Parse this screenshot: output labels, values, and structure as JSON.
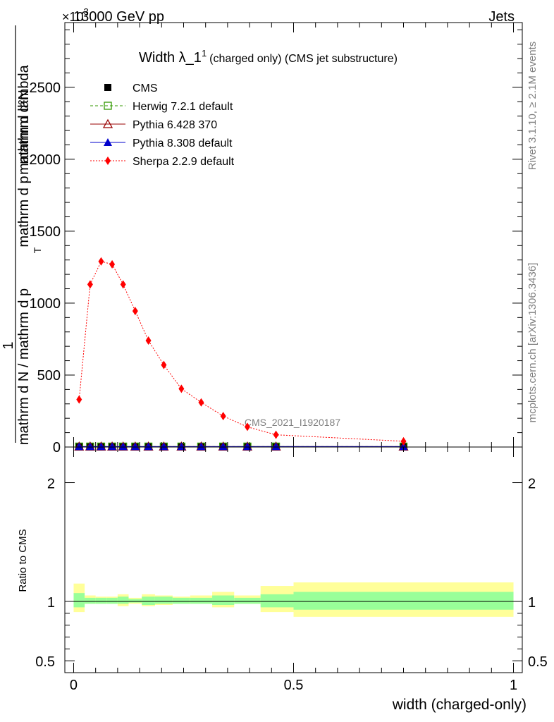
{
  "header": {
    "left": "13000 GeV pp",
    "right": "Jets",
    "exponent": "×10",
    "exponent_power": "3"
  },
  "side_labels": {
    "rivet": "Rivet 3.1.10, ≥ 2.1M events",
    "mcplots": "mcplots.cern.ch [arXiv:1306.3436]"
  },
  "watermark": "CMS_2021_I1920187",
  "chart_data": [
    {
      "type": "line",
      "title": "Width λ_1¹ (charged only) (CMS jet substructure)",
      "title_main": "Width λ_1",
      "title_sup": "1",
      "title_rest": "(charged only) (CMS jet substructure)",
      "ylabel_top": "1",
      "ylabel_numerator": "mathrm d²N",
      "ylabel_denominator": "mathrm d N / mathrm d p_T mathrm d p_T mathrm d lambda",
      "ylabel_upper": "mathrm d²N",
      "ylabel_lower_a": "mathrm d N / mathrm d p",
      "ylabel_lower_b": "mathrm d p",
      "ylabel_lower_c": "mathrm d lambda",
      "ylabel_sub": "T",
      "ylim": [
        0,
        2950
      ],
      "xlim": [
        -0.02,
        1.02
      ],
      "y_ticks": [
        "0",
        "500",
        "1000",
        "1500",
        "2000",
        "2500"
      ],
      "legend_position": "top-left",
      "series": [
        {
          "name": "CMS",
          "marker": "filled-square",
          "color": "#000000",
          "x": [
            0.0125,
            0.0375,
            0.0625,
            0.0875,
            0.1125,
            0.14,
            0.17,
            0.205,
            0.245,
            0.29,
            0.34,
            0.395,
            0.46,
            0.75
          ],
          "y": [
            3,
            3,
            3,
            3,
            3,
            3,
            3,
            3,
            3,
            3,
            3,
            3,
            3,
            3
          ]
        },
        {
          "name": "Herwig 7.2.1 default",
          "marker": "open-square",
          "color": "#339900",
          "x": [
            0.0125,
            0.0375,
            0.0625,
            0.0875,
            0.1125,
            0.14,
            0.17,
            0.205,
            0.245,
            0.29,
            0.34,
            0.395,
            0.46,
            0.75
          ],
          "y": [
            3,
            3,
            3,
            3,
            3,
            3,
            3,
            3,
            3,
            3,
            3,
            3,
            3,
            3
          ]
        },
        {
          "name": "Pythia 6.428 370",
          "marker": "open-triangle",
          "color": "#990000",
          "x": [
            0.0125,
            0.0375,
            0.0625,
            0.0875,
            0.1125,
            0.14,
            0.17,
            0.205,
            0.245,
            0.29,
            0.34,
            0.395,
            0.46,
            0.75
          ],
          "y": [
            3,
            3,
            3,
            3,
            3,
            3,
            3,
            3,
            3,
            3,
            3,
            3,
            3,
            3
          ]
        },
        {
          "name": "Pythia 8.308 default",
          "marker": "filled-triangle",
          "color": "#0000cc",
          "x": [
            0.0125,
            0.0375,
            0.0625,
            0.0875,
            0.1125,
            0.14,
            0.17,
            0.205,
            0.245,
            0.29,
            0.34,
            0.395,
            0.46,
            0.75
          ],
          "y": [
            3,
            3,
            3,
            3,
            3,
            3,
            3,
            3,
            3,
            3,
            3,
            3,
            3,
            3
          ]
        },
        {
          "name": "Sherpa 2.2.9 default",
          "marker": "filled-diamond",
          "color": "#ff0000",
          "x": [
            0.0125,
            0.0375,
            0.0625,
            0.0875,
            0.1125,
            0.14,
            0.17,
            0.205,
            0.245,
            0.29,
            0.34,
            0.395,
            0.46,
            0.75
          ],
          "y": [
            330,
            1130,
            1290,
            1270,
            1130,
            945,
            740,
            570,
            405,
            310,
            215,
            140,
            85,
            40
          ]
        }
      ]
    },
    {
      "type": "area",
      "ylabel": "Ratio to CMS",
      "xlabel": "width (charged-only)",
      "ylim": [
        0.4,
        2.3
      ],
      "xlim": [
        -0.02,
        1.02
      ],
      "x_ticks": [
        "0",
        "0.5",
        "1"
      ],
      "y_ticks": [
        "0.5",
        "1",
        "2"
      ],
      "reference_line": 1,
      "bins": [
        {
          "x0": 0.0,
          "x1": 0.025,
          "inner": [
            0.95,
            1.07
          ],
          "outer": [
            0.91,
            1.15
          ]
        },
        {
          "x0": 0.025,
          "x1": 0.05,
          "inner": [
            0.98,
            1.03
          ],
          "outer": [
            0.98,
            1.05
          ]
        },
        {
          "x0": 0.05,
          "x1": 0.075,
          "inner": [
            0.98,
            1.03
          ],
          "outer": [
            0.98,
            1.04
          ]
        },
        {
          "x0": 0.075,
          "x1": 0.1,
          "inner": [
            0.98,
            1.03
          ],
          "outer": [
            0.98,
            1.04
          ]
        },
        {
          "x0": 0.1,
          "x1": 0.125,
          "inner": [
            0.98,
            1.04
          ],
          "outer": [
            0.96,
            1.06
          ]
        },
        {
          "x0": 0.125,
          "x1": 0.155,
          "inner": [
            0.99,
            1.02
          ],
          "outer": [
            0.98,
            1.03
          ]
        },
        {
          "x0": 0.155,
          "x1": 0.185,
          "inner": [
            0.97,
            1.04
          ],
          "outer": [
            0.96,
            1.06
          ]
        },
        {
          "x0": 0.185,
          "x1": 0.225,
          "inner": [
            0.98,
            1.04
          ],
          "outer": [
            0.97,
            1.05
          ]
        },
        {
          "x0": 0.225,
          "x1": 0.265,
          "inner": [
            0.98,
            1.03
          ],
          "outer": [
            0.98,
            1.04
          ]
        },
        {
          "x0": 0.265,
          "x1": 0.315,
          "inner": [
            0.98,
            1.03
          ],
          "outer": [
            0.98,
            1.05
          ]
        },
        {
          "x0": 0.315,
          "x1": 0.365,
          "inner": [
            0.97,
            1.05
          ],
          "outer": [
            0.95,
            1.08
          ]
        },
        {
          "x0": 0.365,
          "x1": 0.425,
          "inner": [
            0.98,
            1.03
          ],
          "outer": [
            0.98,
            1.05
          ]
        },
        {
          "x0": 0.425,
          "x1": 0.5,
          "inner": [
            0.95,
            1.06
          ],
          "outer": [
            0.91,
            1.13
          ]
        },
        {
          "x0": 0.5,
          "x1": 1.0,
          "inner": [
            0.93,
            1.08
          ],
          "outer": [
            0.87,
            1.16
          ]
        }
      ]
    }
  ]
}
